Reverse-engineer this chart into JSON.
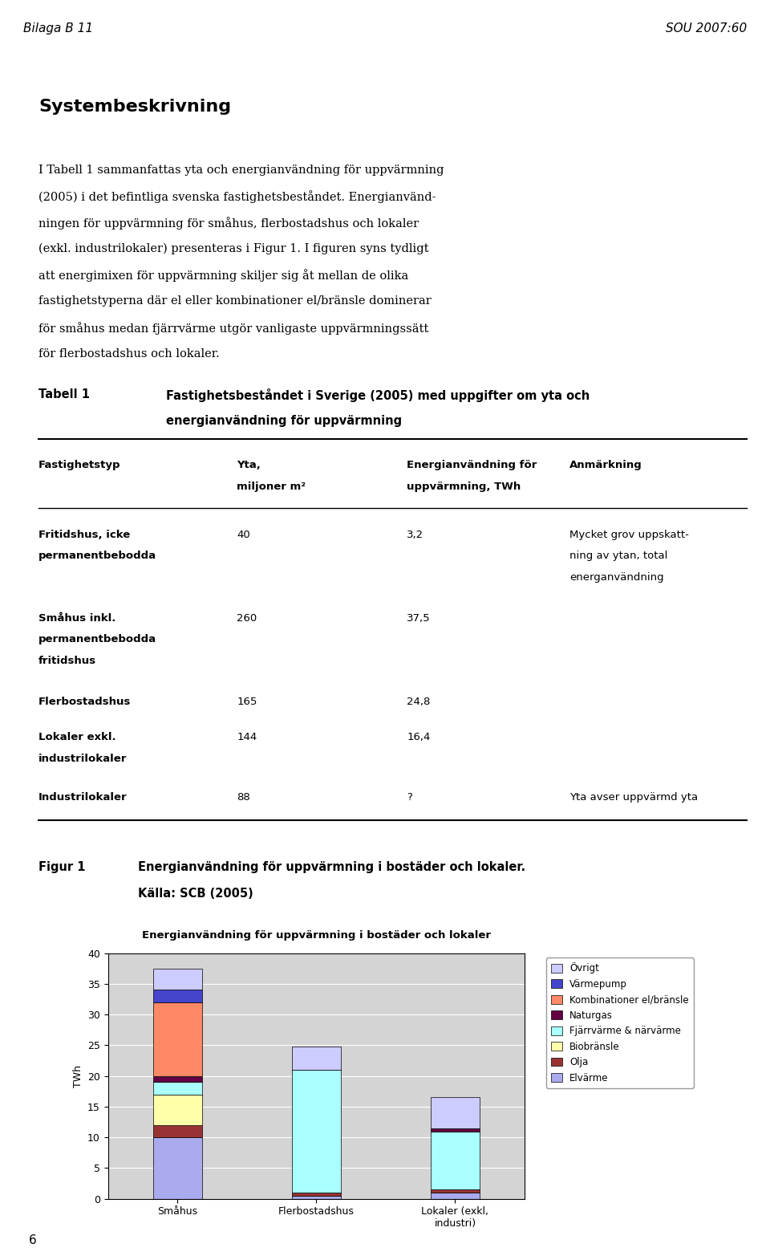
{
  "page_header_left": "Bilaga B 11",
  "page_header_right": "SOU 2007:60",
  "section_title": "Systembeskrivning",
  "body_text": "I Tabell 1 sammanfattas yta och energianvändning för uppvärmning\n(2005) i det befintliga svenska fastighetsbeståndet. Energianvänd-\nningen för uppvärmning för småhus, flerbostadshus och lokaler\n(exkl. industrilokaler) presenteras i Figur 1. I figuren syns tydligt\natt energimixen för uppvärmning skiljer sig åt mellan de olika\nfastighetstyperna där el eller kombinationer el/bränsle dominerar\nför småhus medan fjärrvärme utgör vanligaste uppvärmningssätt\nför flerbostadshus och lokaler.",
  "table_title_bold": "Tabell 1",
  "table_title_text": "Fastighetsbeståndet i Sverige (2005) med uppgifter om yta och\nenergianvändning för uppvärmning",
  "table_headers": [
    "Fastighetstyp",
    "Yta,\nmiljoner m²",
    "Energianvändning för\nuppvärmning, TWh",
    "Anmärkning"
  ],
  "table_rows": [
    [
      "Fritidshus, icke\npermanentbebodda",
      "40",
      "3,2",
      "Mycket grov uppskatt-\nning av ytan, total\nenerganvändning"
    ],
    [
      "Småhus inkl.\npermanentbebodda\nfritidshus",
      "260",
      "37,5",
      ""
    ],
    [
      "Flerbostadshus",
      "165",
      "24,8",
      ""
    ],
    [
      "Lokaler exkl.\nindustrilokaler",
      "144",
      "16,4",
      ""
    ],
    [
      "Industrilokaler",
      "88",
      "?",
      "Yta avser uppvärmd yta"
    ]
  ],
  "figur_label": "Figur 1",
  "figur_caption_line1": "Energianvändning för uppvärmning i bostäder och lokaler.",
  "figur_caption_line2": "Källa: SCB (2005)",
  "chart_title": "Energianvändning för uppvärmning i bostäder och lokaler",
  "chart_ylabel": "TWh",
  "chart_ylim": [
    0,
    40
  ],
  "chart_yticks": [
    0,
    5,
    10,
    15,
    20,
    25,
    30,
    35,
    40
  ],
  "chart_categories": [
    "Småhus",
    "Flerbostadshus",
    "Lokaler (exkl,\nindustri)"
  ],
  "chart_bg_color": "#c8c8c8",
  "chart_plot_bg": "#d4d4d4",
  "legend_labels": [
    "Övrigt",
    "Värmepump",
    "Kombinationer el/bränsle",
    "Naturgas",
    "Fjärrvärme & närvärme",
    "Biobränsle",
    "Olja",
    "Elvärme"
  ],
  "legend_colors": [
    "#ccccff",
    "#4444cc",
    "#ff8866",
    "#660044",
    "#aaffff",
    "#ffffaa",
    "#993333",
    "#aaaaee"
  ],
  "bar_data": {
    "Elvärme": [
      10.0,
      0.5,
      1.0
    ],
    "Olja": [
      2.0,
      0.5,
      0.5
    ],
    "Biobränsle": [
      5.0,
      0.0,
      0.0
    ],
    "Fjärrvärme & närvärme": [
      2.0,
      20.0,
      9.5
    ],
    "Naturgas": [
      1.0,
      0.0,
      0.5
    ],
    "Kombinationer el/bränsle": [
      12.0,
      0.0,
      0.0
    ],
    "Värmepump": [
      2.0,
      0.0,
      0.0
    ],
    "Övrigt": [
      3.5,
      3.8,
      5.0
    ]
  },
  "bar_colors": {
    "Elvärme": "#aaaaee",
    "Olja": "#993333",
    "Biobränsle": "#ffffaa",
    "Fjärrvärme & närvärme": "#aaffff",
    "Naturgas": "#660044",
    "Kombinationer el/bränsle": "#ff8866",
    "Värmepump": "#4444cc",
    "Övrigt": "#ccccff"
  },
  "page_number": "6"
}
